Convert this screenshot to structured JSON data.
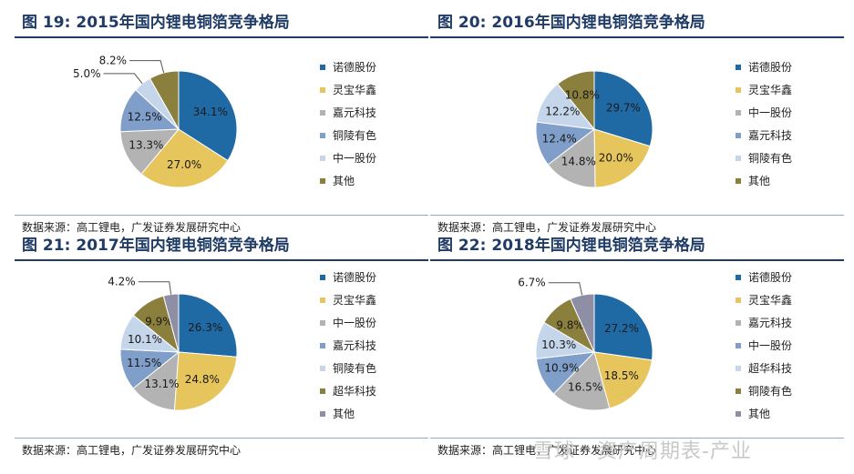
{
  "colors": {
    "title": "#1f3b66",
    "slices": [
      "#1f6aa5",
      "#e6c55c",
      "#b3b3b3",
      "#7f9ec9",
      "#c5d6ea",
      "#8b7f3d",
      "#8e8fa6"
    ]
  },
  "chart_data": [
    {
      "type": "pie",
      "figure_no": "图 19:",
      "title": "2015年国内锂电铜箔竞争格局",
      "categories": [
        "诺德股份",
        "灵宝华鑫",
        "嘉元科技",
        "铜陵有色",
        "中一股份",
        "其他"
      ],
      "values": [
        34.1,
        27.0,
        13.3,
        12.5,
        5.0,
        8.2
      ],
      "data_labels": [
        "34.1%",
        "27.0%",
        "13.3%",
        "12.5%",
        "5.0%",
        "8.2%"
      ],
      "source": "数据来源：高工锂电，广发证券发展研究中心"
    },
    {
      "type": "pie",
      "figure_no": "图 20:",
      "title": "2016年国内锂电铜箔竞争格局",
      "categories": [
        "诺德股份",
        "灵宝华鑫",
        "中一股份",
        "嘉元科技",
        "铜陵有色",
        "其他"
      ],
      "values": [
        29.7,
        20.0,
        14.8,
        12.4,
        12.2,
        10.8
      ],
      "data_labels": [
        "29.7%",
        "20.0%",
        "14.8%",
        "12.4%",
        "12.2%",
        "10.8%"
      ],
      "source": "数据来源：高工锂电，广发证券发展研究中心"
    },
    {
      "type": "pie",
      "figure_no": "图 21:",
      "title": "2017年国内锂电铜箔竞争格局",
      "categories": [
        "诺德股份",
        "灵宝华鑫",
        "中一股份",
        "嘉元科技",
        "铜陵有色",
        "超华科技",
        "其他"
      ],
      "values": [
        26.3,
        24.8,
        13.1,
        11.5,
        10.1,
        9.9,
        4.2
      ],
      "data_labels": [
        "26.3%",
        "24.8%",
        "13.1%",
        "11.5%",
        "10.1%",
        "9.9%",
        "4.2%"
      ],
      "source": "数据来源：高工锂电，广发证券发展研究中心"
    },
    {
      "type": "pie",
      "figure_no": "图 22:",
      "title": "2018年国内锂电铜箔竞争格局",
      "categories": [
        "诺德股份",
        "灵宝华鑫",
        "嘉元科技",
        "中一股份",
        "超华科技",
        "铜陵有色",
        "其他"
      ],
      "values": [
        27.2,
        18.5,
        16.5,
        10.9,
        10.3,
        9.8,
        6.7
      ],
      "data_labels": [
        "27.2%",
        "18.5%",
        "16.5%",
        "10.9%",
        "10.3%",
        "9.8%",
        "6.7%"
      ],
      "source": "数据来源：高工锂电，广发证券发展研究中心"
    }
  ],
  "watermark": "雪球 · 资产周期表-产业"
}
